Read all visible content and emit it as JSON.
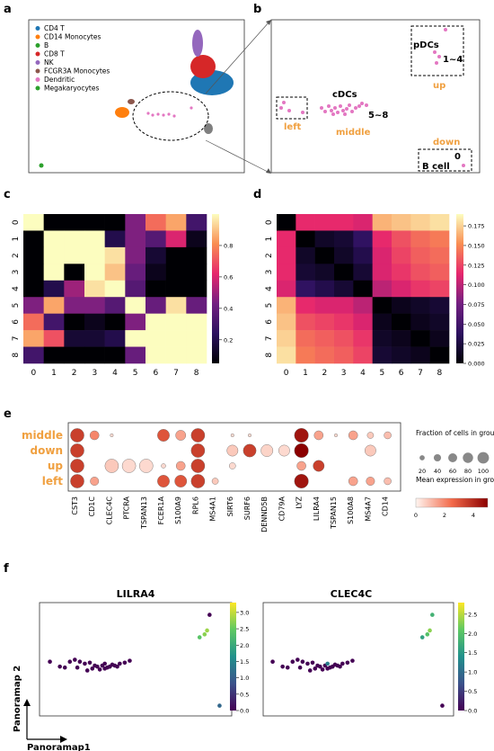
{
  "panels": {
    "a": "a",
    "b": "b",
    "c": "c",
    "d": "d",
    "e": "e",
    "f": "f"
  },
  "panel_a": {
    "legend": [
      {
        "label": "CD4 T",
        "color": "#1f77b4"
      },
      {
        "label": "CD14 Monocytes",
        "color": "#ff7f0e"
      },
      {
        "label": "B",
        "color": "#2ca02c"
      },
      {
        "label": "CD8 T",
        "color": "#d62728"
      },
      {
        "label": "NK",
        "color": "#9467bd"
      },
      {
        "label": "FCGR3A Monocytes",
        "color": "#8c564b"
      },
      {
        "label": "Dendritic",
        "color": "#e377c2"
      },
      {
        "label": "Megakaryocytes",
        "color": "#2ca02c"
      }
    ]
  },
  "panel_b": {
    "pdcs": "pDCs",
    "range_up": "1~4",
    "up": "up",
    "cdcs": "cDCs",
    "range_mid": "5~8",
    "middle": "middle",
    "left": "left",
    "down": "down",
    "zero": "0",
    "bcell": "B cell"
  },
  "chart_data": [
    {
      "type": "heatmap",
      "panel": "c",
      "rows": [
        "0",
        "1",
        "2",
        "3",
        "4",
        "5",
        "6",
        "7",
        "8"
      ],
      "cols": [
        "0",
        "1",
        "2",
        "3",
        "4",
        "5",
        "6",
        "7",
        "8"
      ],
      "colorbar_ticks": [
        0.2,
        0.4,
        0.6,
        0.8
      ],
      "vlim": [
        0.05,
        1.0
      ],
      "values": [
        [
          1.0,
          0.05,
          0.05,
          0.05,
          0.05,
          0.45,
          0.75,
          0.85,
          0.3
        ],
        [
          0.05,
          1.0,
          1.0,
          1.0,
          0.2,
          0.45,
          0.35,
          0.6,
          0.1
        ],
        [
          0.05,
          1.0,
          1.0,
          1.0,
          0.95,
          0.45,
          0.15,
          0.05,
          0.05
        ],
        [
          0.05,
          1.0,
          0.05,
          1.0,
          0.9,
          0.4,
          0.1,
          0.05,
          0.05
        ],
        [
          0.05,
          0.2,
          0.5,
          0.95,
          1.0,
          0.35,
          0.05,
          0.05,
          0.05
        ],
        [
          0.45,
          0.85,
          0.45,
          0.45,
          0.35,
          1.0,
          0.4,
          0.95,
          0.4
        ],
        [
          0.75,
          0.3,
          0.05,
          0.1,
          0.05,
          0.45,
          1.0,
          1.0,
          1.0
        ],
        [
          0.85,
          0.7,
          0.15,
          0.15,
          0.2,
          1.0,
          1.0,
          1.0,
          1.0
        ],
        [
          0.3,
          0.05,
          0.05,
          0.05,
          0.05,
          0.4,
          1.0,
          1.0,
          1.0
        ]
      ]
    },
    {
      "type": "heatmap",
      "panel": "d",
      "rows": [
        "0",
        "1",
        "2",
        "3",
        "4",
        "5",
        "6",
        "7",
        "8"
      ],
      "cols": [
        "0",
        "1",
        "2",
        "3",
        "4",
        "5",
        "6",
        "7",
        "8"
      ],
      "colorbar_ticks": [
        0.0,
        0.025,
        0.05,
        0.075,
        0.1,
        0.125,
        0.15,
        0.175
      ],
      "vlim": [
        0,
        0.19
      ],
      "values": [
        [
          0.0,
          0.115,
          0.115,
          0.115,
          0.11,
          0.165,
          0.17,
          0.175,
          0.18
        ],
        [
          0.115,
          0.0,
          0.015,
          0.02,
          0.04,
          0.115,
          0.13,
          0.14,
          0.145
        ],
        [
          0.115,
          0.015,
          0.0,
          0.015,
          0.03,
          0.11,
          0.125,
          0.135,
          0.14
        ],
        [
          0.115,
          0.02,
          0.015,
          0.0,
          0.02,
          0.11,
          0.12,
          0.13,
          0.135
        ],
        [
          0.11,
          0.04,
          0.03,
          0.02,
          0.0,
          0.1,
          0.11,
          0.12,
          0.125
        ],
        [
          0.165,
          0.115,
          0.11,
          0.11,
          0.1,
          0.0,
          0.01,
          0.015,
          0.02
        ],
        [
          0.17,
          0.13,
          0.125,
          0.12,
          0.11,
          0.01,
          0.0,
          0.01,
          0.015
        ],
        [
          0.175,
          0.14,
          0.135,
          0.13,
          0.12,
          0.015,
          0.01,
          0.0,
          0.01
        ],
        [
          0.18,
          0.145,
          0.14,
          0.135,
          0.125,
          0.02,
          0.015,
          0.01,
          0.0
        ]
      ]
    },
    {
      "type": "scatter",
      "panel": "e",
      "groups": [
        "middle",
        "down",
        "up",
        "left"
      ],
      "genes": [
        "CST3",
        "CD1C",
        "CLEC4C",
        "PTCRA",
        "TSPAN13",
        "FCER1A",
        "S100A9",
        "RPL6",
        "MS4A1",
        "SIRT6",
        "SURF6",
        "DENND5B",
        "CD79A",
        "LYZ",
        "LILRA4",
        "TSPAN15",
        "S100A8",
        "MS4A7",
        "CD14"
      ],
      "fraction": [
        [
          90,
          40,
          5,
          0,
          0,
          70,
          50,
          90,
          0,
          5,
          5,
          0,
          0,
          95,
          40,
          5,
          40,
          20,
          25
        ],
        [
          90,
          0,
          0,
          0,
          0,
          0,
          0,
          90,
          0,
          60,
          80,
          70,
          60,
          95,
          0,
          0,
          0,
          60,
          0
        ],
        [
          90,
          0,
          90,
          90,
          90,
          10,
          40,
          90,
          0,
          20,
          0,
          0,
          0,
          40,
          60,
          0,
          0,
          0,
          0
        ],
        [
          90,
          35,
          0,
          0,
          0,
          70,
          70,
          90,
          20,
          0,
          0,
          0,
          0,
          95,
          0,
          0,
          40,
          35,
          25
        ]
      ],
      "mean": [
        [
          3.5,
          2.0,
          0.5,
          0,
          0,
          3.0,
          1.5,
          3.5,
          0,
          0.5,
          0.5,
          0,
          0,
          4.5,
          1.5,
          0.5,
          1.5,
          0.8,
          1.0
        ],
        [
          3.5,
          0,
          0,
          0,
          0,
          0,
          0,
          3.5,
          0,
          0.8,
          3.5,
          0.6,
          0.5,
          5.0,
          0,
          0,
          0,
          0.8,
          0
        ],
        [
          3.5,
          0,
          0.8,
          0.5,
          0.5,
          0.5,
          1.5,
          3.5,
          0,
          0.5,
          0,
          0,
          0,
          1.5,
          3.5,
          0,
          0,
          0,
          0
        ],
        [
          3.5,
          1.5,
          0,
          0,
          0,
          3.0,
          3.0,
          3.5,
          0.8,
          0,
          0,
          0,
          0,
          4.5,
          0,
          0,
          1.5,
          1.5,
          1.0
        ]
      ],
      "size_legend_title": "Fraction of cells in group (%)",
      "size_legend": [
        20,
        40,
        60,
        80,
        100
      ],
      "color_legend_title": "Mean expression in group",
      "color_ticks": [
        0,
        2,
        4
      ]
    },
    {
      "type": "scatter",
      "panel": "f",
      "title": "LILRA4",
      "colorbar_ticks": [
        0.0,
        0.5,
        1.0,
        1.5,
        2.0,
        2.5,
        3.0
      ],
      "vmax": 3.3,
      "x": [
        1,
        3,
        4,
        5,
        6,
        7,
        8,
        9,
        9.5,
        10,
        10.5,
        11,
        11.5,
        12,
        12.5,
        13,
        13.5,
        14,
        14.5,
        15,
        16,
        17,
        6.5,
        8.5,
        12,
        13,
        31,
        32,
        32.5,
        33,
        35
      ],
      "y": [
        10,
        9,
        8.8,
        10,
        10.4,
        10,
        9.6,
        9.8,
        8.6,
        9.2,
        9.0,
        8.4,
        9.2,
        9.6,
        8.8,
        9.0,
        9.4,
        9.2,
        9.0,
        9.6,
        9.8,
        10.2,
        8.8,
        8.2,
        8.6,
        9.0,
        15,
        15.6,
        16.4,
        19.6,
        1
      ],
      "v": [
        0,
        0,
        0,
        0,
        0,
        0,
        0,
        0,
        0,
        0,
        0,
        0,
        0,
        0,
        0,
        0,
        0,
        0,
        0,
        0,
        0,
        0,
        0,
        0,
        0,
        0,
        2.4,
        2.7,
        2.8,
        0,
        1.1
      ]
    },
    {
      "type": "scatter",
      "panel": "f",
      "title": "CLEC4C",
      "colorbar_ticks": [
        0.0,
        0.5,
        1.0,
        1.5,
        2.0,
        2.5
      ],
      "vmax": 2.8,
      "x": [
        1,
        3,
        4,
        5,
        6,
        7,
        8,
        9,
        9.5,
        10,
        10.5,
        11,
        11.5,
        12,
        12.5,
        13,
        13.5,
        14,
        14.5,
        15,
        16,
        17,
        6.5,
        8.5,
        12,
        13,
        31,
        32,
        32.5,
        33,
        35
      ],
      "y": [
        10,
        9,
        8.8,
        10,
        10.4,
        10,
        9.6,
        9.8,
        8.6,
        9.2,
        9.0,
        8.4,
        9.2,
        9.6,
        8.8,
        9.0,
        9.4,
        9.2,
        9.0,
        9.6,
        9.8,
        10.2,
        8.8,
        8.2,
        8.6,
        9.0,
        15,
        15.6,
        16.4,
        19.6,
        1
      ],
      "v": [
        0,
        0,
        0,
        0,
        0,
        0,
        0,
        0,
        0,
        0,
        0,
        0,
        0,
        1.2,
        0,
        0,
        0,
        0,
        0,
        0,
        0,
        0,
        0,
        0,
        0,
        0,
        1.6,
        2.0,
        2.3,
        1.8,
        0
      ]
    }
  ],
  "panel_f": {
    "ylabel": "Panoramap 2",
    "xlabel": "Panoramap1"
  }
}
